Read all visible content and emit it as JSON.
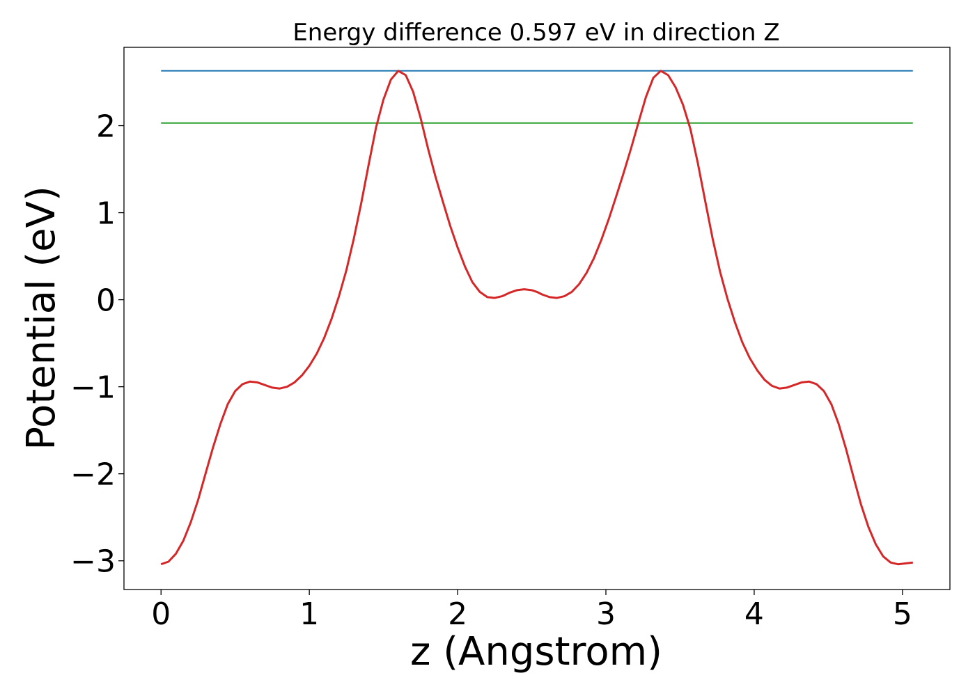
{
  "chart_data": {
    "type": "line",
    "title": "Energy difference 0.597 eV in direction Z",
    "xlabel": "z (Angstrom)",
    "ylabel": "Potential (eV)",
    "xlim": [
      -0.25,
      5.32
    ],
    "ylim": [
      -3.33,
      2.9
    ],
    "xticks": [
      0,
      1,
      2,
      3,
      4,
      5
    ],
    "xtick_labels": [
      "0",
      "1",
      "2",
      "3",
      "4",
      "5"
    ],
    "yticks": [
      -3,
      -2,
      -1,
      0,
      1,
      2
    ],
    "ytick_labels": [
      "−3",
      "−2",
      "−1",
      "0",
      "1",
      "2"
    ],
    "grid": false,
    "hlines": [
      {
        "y": 2.63,
        "x_range": [
          0,
          5.07
        ],
        "color": "#1f77b4"
      },
      {
        "y": 2.03,
        "x_range": [
          0,
          5.07
        ],
        "color": "#2ca02c"
      }
    ],
    "series": [
      {
        "color": "#d62728",
        "x": [
          0,
          0.05,
          0.1,
          0.15,
          0.2,
          0.25,
          0.3,
          0.35,
          0.4,
          0.45,
          0.5,
          0.55,
          0.6,
          0.65,
          0.7,
          0.75,
          0.8,
          0.85,
          0.9,
          0.95,
          1.0,
          1.05,
          1.1,
          1.15,
          1.2,
          1.25,
          1.3,
          1.35,
          1.4,
          1.45,
          1.5,
          1.55,
          1.6,
          1.65,
          1.7,
          1.75,
          1.8,
          1.85,
          1.9,
          1.95,
          2.0,
          2.05,
          2.1,
          2.15,
          2.2,
          2.25,
          2.3,
          2.35,
          2.4,
          2.45,
          2.5,
          2.535,
          2.57,
          2.62,
          2.67,
          2.72,
          2.77,
          2.82,
          2.87,
          2.92,
          2.97,
          3.02,
          3.07,
          3.12,
          3.17,
          3.22,
          3.27,
          3.32,
          3.37,
          3.42,
          3.47,
          3.52,
          3.57,
          3.62,
          3.67,
          3.72,
          3.77,
          3.82,
          3.87,
          3.92,
          3.97,
          4.02,
          4.07,
          4.12,
          4.17,
          4.22,
          4.27,
          4.32,
          4.37,
          4.42,
          4.47,
          4.52,
          4.57,
          4.62,
          4.67,
          4.72,
          4.77,
          4.82,
          4.87,
          4.92,
          4.97,
          5.02,
          5.07
        ],
        "y": [
          -3.04,
          -3.01,
          -2.92,
          -2.77,
          -2.56,
          -2.3,
          -2.0,
          -1.7,
          -1.43,
          -1.2,
          -1.05,
          -0.97,
          -0.94,
          -0.95,
          -0.98,
          -1.01,
          -1.02,
          -1.0,
          -0.95,
          -0.87,
          -0.76,
          -0.62,
          -0.44,
          -0.22,
          0.04,
          0.34,
          0.7,
          1.11,
          1.55,
          1.98,
          2.3,
          2.53,
          2.63,
          2.58,
          2.39,
          2.09,
          1.74,
          1.42,
          1.13,
          0.85,
          0.6,
          0.38,
          0.2,
          0.09,
          0.03,
          0.02,
          0.04,
          0.08,
          0.11,
          0.12,
          0.11,
          0.09,
          0.06,
          0.03,
          0.02,
          0.04,
          0.09,
          0.18,
          0.31,
          0.48,
          0.69,
          0.93,
          1.19,
          1.46,
          1.74,
          2.04,
          2.33,
          2.55,
          2.63,
          2.58,
          2.44,
          2.24,
          1.96,
          1.57,
          1.13,
          0.7,
          0.32,
          0.01,
          -0.26,
          -0.49,
          -0.67,
          -0.81,
          -0.92,
          -0.99,
          -1.02,
          -1.01,
          -0.98,
          -0.95,
          -0.94,
          -0.97,
          -1.05,
          -1.2,
          -1.43,
          -1.72,
          -2.04,
          -2.35,
          -2.61,
          -2.81,
          -2.95,
          -3.02,
          -3.04,
          -3.03,
          -3.02
        ]
      }
    ]
  }
}
